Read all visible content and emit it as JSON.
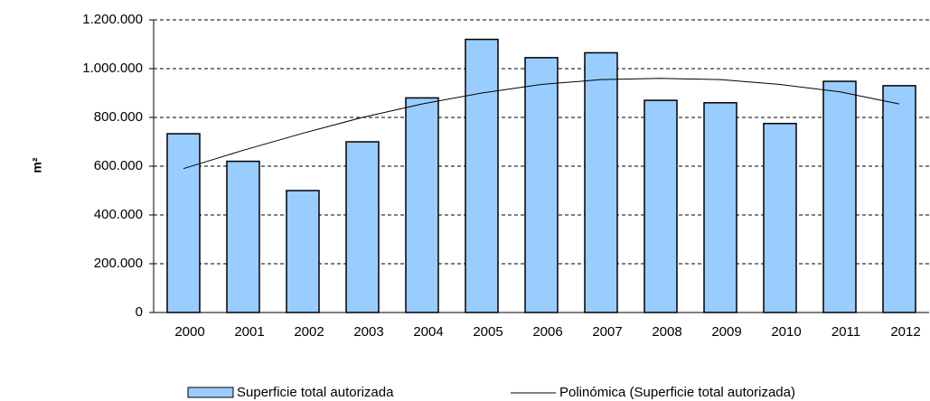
{
  "chart_data": {
    "type": "bar",
    "categories": [
      "2000",
      "2001",
      "2002",
      "2003",
      "2004",
      "2005",
      "2006",
      "2007",
      "2008",
      "2009",
      "2010",
      "2011",
      "2012"
    ],
    "series": [
      {
        "name": "Superficie total autorizada",
        "type": "bar",
        "color": "#99ccff",
        "values": [
          733000,
          620000,
          500000,
          700000,
          880000,
          1120000,
          1045000,
          1065000,
          870000,
          860000,
          775000,
          948000,
          930000
        ]
      },
      {
        "name": "Polinómica (Superficie total autorizada)",
        "type": "line",
        "color": "#000000",
        "values": [
          590000,
          665000,
          735000,
          800000,
          855000,
          900000,
          935000,
          955000,
          960000,
          955000,
          935000,
          905000,
          855000
        ]
      }
    ],
    "ylabel": "m²",
    "ylim": [
      0,
      1200000
    ],
    "yticks": [
      0,
      {
        "value": 200000,
        "label": "200.000"
      },
      {
        "value": 400000,
        "label": "400.000"
      },
      {
        "value": 600000,
        "label": "600.000"
      },
      {
        "value": 800000,
        "label": "800.000"
      },
      {
        "value": 1000000,
        "label": "1.000.000"
      },
      {
        "value": 1200000,
        "label": "1.200.000"
      }
    ],
    "grid": true,
    "legend": "bottom"
  }
}
